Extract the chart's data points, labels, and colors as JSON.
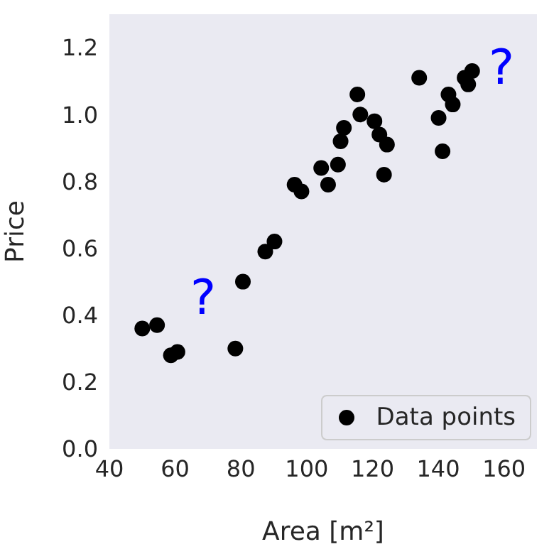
{
  "chart_data": {
    "type": "scatter",
    "xlabel": "Area [m²]",
    "ylabel": "Price",
    "xlim": [
      40,
      170
    ],
    "ylim": [
      0,
      1.3
    ],
    "xticks": [
      40,
      60,
      80,
      100,
      120,
      140,
      160
    ],
    "yticks": [
      {
        "value": 0,
        "label": "0.0"
      },
      {
        "value": 0.2,
        "label": "0.2"
      },
      {
        "value": 0.4,
        "label": "0.4"
      },
      {
        "value": 0.6,
        "label": "0.6"
      },
      {
        "value": 0.8,
        "label": "0.8"
      },
      {
        "value": 1.0,
        "label": "1.0"
      },
      {
        "value": 1.2,
        "label": "1.2"
      }
    ],
    "marker": "circle",
    "legend": "bottom right",
    "annotations": [
      "?",
      "?"
    ],
    "series": [
      {
        "name": "Data points",
        "color": "#000000",
        "x": [
          50,
          54.5,
          58.7,
          60.7,
          78.3,
          80.6,
          87.4,
          90.2,
          96.3,
          98.4,
          104.4,
          106.5,
          109.5,
          110.3,
          111.3,
          115.4,
          116.3,
          120.6,
          122.1,
          124.4,
          123.5,
          134.2,
          140.1,
          141.3,
          143.1,
          144.4,
          148,
          149.1,
          150.3
        ],
        "values": [
          0.36,
          0.37,
          0.28,
          0.29,
          0.3,
          0.5,
          0.59,
          0.62,
          0.79,
          0.77,
          0.84,
          0.79,
          0.85,
          0.92,
          0.96,
          1.06,
          1.0,
          0.98,
          0.94,
          0.91,
          0.82,
          1.11,
          0.99,
          0.89,
          1.06,
          1.03,
          1.11,
          1.09,
          1.13
        ]
      }
    ]
  }
}
